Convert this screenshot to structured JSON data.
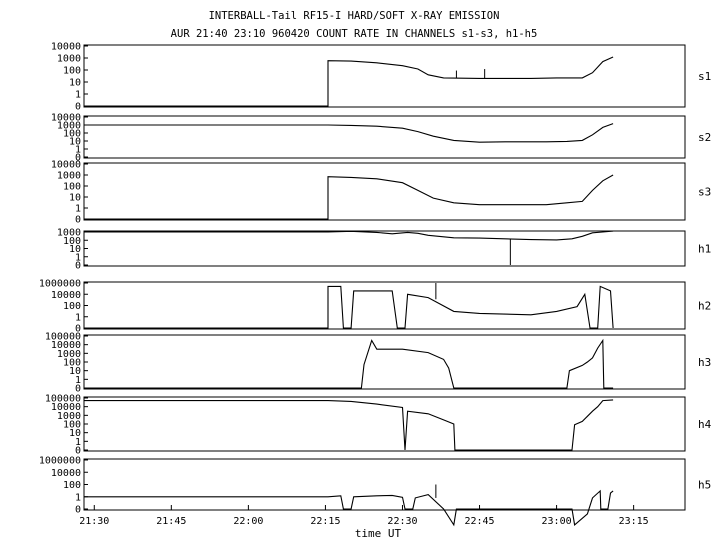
{
  "chart_data": {
    "type": "line",
    "title": "INTERBALL-Tail RF15-I HARD/SOFT X-RAY EMISSION",
    "subtitle": "AUR 21:40 23:10 960420  COUNT RATE IN CHANNELS s1-s3, h1-h5",
    "xlabel": "time UT",
    "x_unit": "minutes",
    "xlim": [
      "21:28",
      "23:25"
    ],
    "x_ticks": [
      {
        "label": "21:30",
        "t": 90
      },
      {
        "label": "21:45",
        "t": 105
      },
      {
        "label": "22:00",
        "t": 120
      },
      {
        "label": "22:15",
        "t": 135
      },
      {
        "label": "22:30",
        "t": 150
      },
      {
        "label": "22:45",
        "t": 165
      },
      {
        "label": "23:00",
        "t": 180
      },
      {
        "label": "23:15",
        "t": 195
      }
    ],
    "y_scale": "log",
    "grid": false,
    "panels": [
      {
        "name": "s1",
        "y_ticks": [
          "10000",
          "1000",
          "100",
          "10",
          "1",
          "0"
        ],
        "series": [
          [
            88,
            0
          ],
          [
            135.5,
            0
          ],
          [
            135.5,
            600
          ],
          [
            140,
            550
          ],
          [
            145,
            400
          ],
          [
            150,
            230
          ],
          [
            153,
            120
          ],
          [
            155,
            40
          ],
          [
            158,
            22
          ],
          [
            165,
            20
          ],
          [
            175,
            20
          ],
          [
            180,
            22
          ],
          [
            185,
            22
          ],
          [
            187,
            60
          ],
          [
            189,
            500
          ],
          [
            191,
            1200
          ]
        ],
        "spikes": [
          [
            160.5,
            90
          ],
          [
            166,
            120
          ]
        ]
      },
      {
        "name": "s2",
        "y_ticks": [
          "10000",
          "1000",
          "100",
          "10",
          "1",
          "0"
        ],
        "series": [
          [
            88,
            1000
          ],
          [
            135.5,
            1000
          ],
          [
            140,
            900
          ],
          [
            145,
            700
          ],
          [
            150,
            400
          ],
          [
            153,
            150
          ],
          [
            156,
            40
          ],
          [
            160,
            12
          ],
          [
            165,
            7
          ],
          [
            170,
            8
          ],
          [
            178,
            8
          ],
          [
            182,
            9
          ],
          [
            185,
            12
          ],
          [
            187,
            60
          ],
          [
            189,
            500
          ],
          [
            191,
            1500
          ]
        ],
        "spikes": []
      },
      {
        "name": "s3",
        "y_ticks": [
          "10000",
          "1000",
          "100",
          "10",
          "1",
          "0"
        ],
        "series": [
          [
            88,
            0
          ],
          [
            135.5,
            0
          ],
          [
            135.5,
            700
          ],
          [
            140,
            600
          ],
          [
            145,
            450
          ],
          [
            150,
            200
          ],
          [
            153,
            40
          ],
          [
            156,
            8
          ],
          [
            160,
            3
          ],
          [
            165,
            2
          ],
          [
            170,
            2
          ],
          [
            178,
            2
          ],
          [
            182,
            3
          ],
          [
            185,
            4
          ],
          [
            187,
            40
          ],
          [
            189,
            300
          ],
          [
            191,
            1000
          ]
        ],
        "spikes": []
      },
      {
        "name": "h1",
        "y_ticks": [
          "1000",
          "100",
          "10",
          "1",
          "0"
        ],
        "series": [
          [
            88,
            1000
          ],
          [
            135.5,
            1000
          ],
          [
            140,
            1200
          ],
          [
            145,
            900
          ],
          [
            148,
            600
          ],
          [
            151,
            900
          ],
          [
            153,
            700
          ],
          [
            155,
            400
          ],
          [
            160,
            200
          ],
          [
            165,
            180
          ],
          [
            175,
            120
          ],
          [
            180,
            110
          ],
          [
            183,
            150
          ],
          [
            185,
            300
          ],
          [
            187,
            800
          ],
          [
            189,
            1000
          ],
          [
            191,
            1300
          ]
        ],
        "spikes": [
          [
            171,
            0
          ]
        ]
      },
      {
        "name": "h2",
        "y_ticks": [
          "1000000",
          "10000",
          "100",
          "1",
          "0"
        ],
        "series": [
          [
            88,
            0
          ],
          [
            135.5,
            0
          ],
          [
            135.5,
            500000
          ],
          [
            138,
            500000
          ],
          [
            138.5,
            0
          ],
          [
            140,
            0
          ],
          [
            140.5,
            200000
          ],
          [
            148,
            200000
          ],
          [
            149,
            0
          ],
          [
            150.5,
            0
          ],
          [
            151,
            100000
          ],
          [
            155,
            50000
          ],
          [
            160,
            3000
          ],
          [
            165,
            2000
          ],
          [
            175,
            1500
          ],
          [
            180,
            3000
          ],
          [
            184,
            8000
          ],
          [
            185.5,
            100000
          ],
          [
            186.5,
            0
          ],
          [
            188,
            0
          ],
          [
            188.5,
            500000
          ],
          [
            190.5,
            200000
          ],
          [
            191,
            0
          ]
        ],
        "spikes": [
          [
            156.5,
            1000000
          ]
        ]
      },
      {
        "name": "h3",
        "y_ticks": [
          "100000",
          "10000",
          "1000",
          "100",
          "10",
          "1",
          "0"
        ],
        "series": [
          [
            88,
            0
          ],
          [
            142,
            0
          ],
          [
            142.5,
            50
          ],
          [
            144,
            30000
          ],
          [
            145,
            3000
          ],
          [
            150,
            3000
          ],
          [
            155,
            1200
          ],
          [
            158,
            200
          ],
          [
            159,
            20
          ],
          [
            160,
            0
          ],
          [
            182,
            0
          ],
          [
            182.5,
            10
          ],
          [
            185,
            40
          ],
          [
            186,
            100
          ],
          [
            187,
            300
          ],
          [
            188,
            4000
          ],
          [
            189,
            30000
          ],
          [
            189.2,
            0
          ],
          [
            191,
            0
          ]
        ],
        "spikes": []
      },
      {
        "name": "h4",
        "y_ticks": [
          "100000",
          "10000",
          "1000",
          "100",
          "10",
          "1",
          "0"
        ],
        "series": [
          [
            88,
            50000
          ],
          [
            135.5,
            50000
          ],
          [
            140,
            40000
          ],
          [
            145,
            20000
          ],
          [
            150,
            8000
          ],
          [
            150.5,
            0
          ],
          [
            151,
            3000
          ],
          [
            155,
            1500
          ],
          [
            158,
            300
          ],
          [
            160,
            100
          ],
          [
            160.2,
            0
          ],
          [
            183,
            0
          ],
          [
            183.5,
            80
          ],
          [
            185,
            200
          ],
          [
            187,
            3000
          ],
          [
            188,
            10000
          ],
          [
            189,
            50000
          ],
          [
            191,
            60000
          ]
        ],
        "spikes": []
      },
      {
        "name": "h5",
        "y_ticks": [
          "1000000",
          "10000",
          "100",
          "1",
          "0"
        ],
        "series": [
          [
            88,
            1000
          ],
          [
            135.5,
            1000
          ],
          [
            138,
            1200
          ],
          [
            138.5,
            0
          ],
          [
            140,
            0
          ],
          [
            140.5,
            1000
          ],
          [
            145,
            1200
          ],
          [
            148,
            1300
          ],
          [
            150,
            900
          ],
          [
            150.5,
            0
          ],
          [
            152,
            0
          ],
          [
            152.5,
            800
          ],
          [
            155,
            1500
          ],
          [
            158,
            100
          ],
          [
            160,
            5
          ],
          [
            160.5,
            0
          ],
          [
            183,
            0
          ],
          [
            183.5,
            5
          ],
          [
            186,
            40
          ],
          [
            187,
            800
          ],
          [
            188.5,
            3000
          ],
          [
            188.6,
            0
          ],
          [
            190,
            0
          ],
          [
            190.5,
            2000
          ],
          [
            191,
            3000
          ]
        ],
        "spikes": [
          [
            156.5,
            10000
          ]
        ]
      }
    ]
  }
}
